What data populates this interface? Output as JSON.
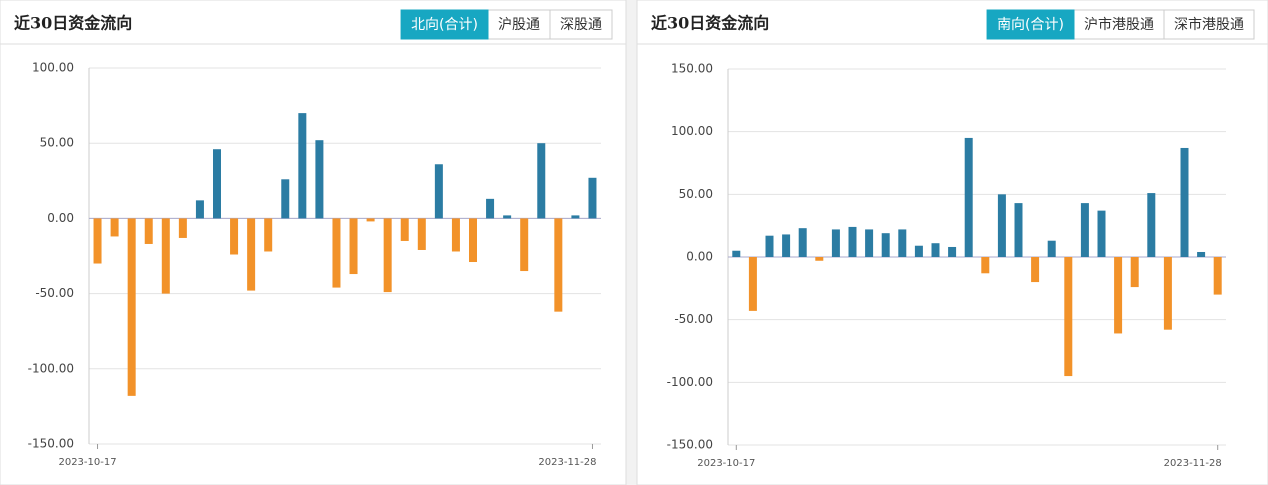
{
  "chart_data": [
    {
      "type": "bar",
      "title": "近30日资金流向",
      "tabs": [
        "北向(合计)",
        "沪股通",
        "深股通"
      ],
      "active_tab": 0,
      "categories": [
        "2023-10-17",
        null,
        null,
        null,
        null,
        null,
        null,
        null,
        null,
        null,
        null,
        null,
        null,
        null,
        null,
        null,
        null,
        null,
        null,
        null,
        null,
        null,
        null,
        null,
        null,
        null,
        null,
        null,
        null,
        "2023-11-28"
      ],
      "values": [
        -30,
        -12,
        -118,
        -17,
        -50,
        -13,
        12,
        46,
        -24,
        -48,
        -22,
        26,
        70,
        52,
        -46,
        -37,
        -2,
        -49,
        -15,
        -21,
        36,
        -22,
        -29,
        13,
        2,
        -35,
        50,
        -62,
        2,
        27
      ],
      "positive_color": "#2b7ca3",
      "negative_color": "#f29229",
      "ylim": [
        -150,
        100
      ],
      "yticks": [
        {
          "value": -150,
          "label": "-150.00"
        },
        {
          "value": -100,
          "label": "-100.00"
        },
        {
          "value": -50,
          "label": "-50.00"
        },
        {
          "value": 0,
          "label": "0.00"
        },
        {
          "value": 50,
          "label": "50.00"
        },
        {
          "value": 100,
          "label": "100.00"
        }
      ],
      "grid": true
    },
    {
      "type": "bar",
      "title": "近30日资金流向",
      "tabs": [
        "南向(合计)",
        "沪市港股通",
        "深市港股通"
      ],
      "active_tab": 0,
      "categories": [
        "2023-10-17",
        null,
        null,
        null,
        null,
        null,
        null,
        null,
        null,
        null,
        null,
        null,
        null,
        null,
        null,
        null,
        null,
        null,
        null,
        null,
        null,
        null,
        null,
        null,
        null,
        null,
        null,
        null,
        null,
        "2023-11-28"
      ],
      "values": [
        5,
        -43,
        17,
        18,
        23,
        -3,
        22,
        24,
        22,
        19,
        22,
        9,
        11,
        8,
        95,
        -13,
        50,
        43,
        -20,
        13,
        -95,
        43,
        37,
        -61,
        -24,
        51,
        -58,
        87,
        4,
        -30
      ],
      "positive_color": "#2b7ca3",
      "negative_color": "#f29229",
      "ylim": [
        -150,
        150
      ],
      "yticks": [
        {
          "value": -150,
          "label": "-150.00"
        },
        {
          "value": -100,
          "label": "-100.00"
        },
        {
          "value": -50,
          "label": "-50.00"
        },
        {
          "value": 0,
          "label": "0.00"
        },
        {
          "value": 50,
          "label": "50.00"
        },
        {
          "value": 100,
          "label": "100.00"
        },
        {
          "value": 150,
          "label": "150.00"
        }
      ],
      "grid": true
    }
  ]
}
